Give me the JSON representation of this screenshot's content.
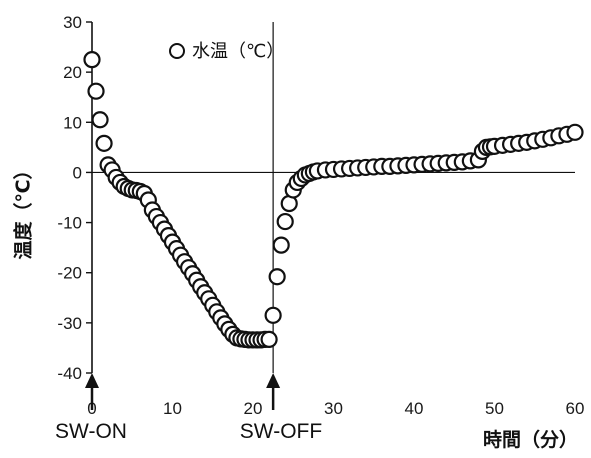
{
  "chart_data": {
    "type": "scatter",
    "title": "",
    "xlabel": "時間（分）",
    "ylabel": "温度（℃）",
    "xlim": [
      0,
      60
    ],
    "ylim": [
      -40,
      30
    ],
    "xticks": [
      0,
      10,
      20,
      30,
      40,
      50,
      60
    ],
    "yticks": [
      -40,
      -30,
      -20,
      -10,
      0,
      10,
      20,
      30
    ],
    "grid": false,
    "reference_lines": {
      "y": 0,
      "x": 22.5
    },
    "legend": {
      "label": "水温（℃）",
      "position": "top-center"
    },
    "annotations": [
      {
        "text": "SW-ON",
        "x": 0
      },
      {
        "text": "SW-OFF",
        "x": 22.5
      }
    ],
    "marker": {
      "shape": "open-circle",
      "color": "#111111"
    },
    "series": [
      {
        "name": "水温（℃）",
        "x": [
          0,
          0.5,
          1.0,
          1.5,
          2.0,
          2.5,
          3.0,
          3.5,
          4.0,
          4.5,
          5.0,
          5.5,
          6.0,
          6.5,
          7.0,
          7.5,
          8.0,
          8.5,
          9.0,
          9.5,
          10.0,
          10.5,
          11.0,
          11.5,
          12.0,
          12.5,
          13.0,
          13.5,
          14.0,
          14.5,
          15.0,
          15.5,
          16.0,
          16.5,
          17.0,
          17.5,
          18.0,
          18.5,
          19.0,
          19.5,
          20.0,
          20.5,
          21.0,
          21.5,
          22.0,
          22.5,
          23.0,
          23.5,
          24.0,
          24.5,
          25.0,
          25.5,
          26.0,
          26.5,
          27.0,
          27.5,
          28.0,
          29.0,
          30.0,
          31.0,
          32.0,
          33.0,
          34.0,
          35.0,
          36.0,
          37.0,
          38.0,
          39.0,
          40.0,
          41.0,
          42.0,
          43.0,
          44.0,
          45.0,
          46.0,
          47.0,
          48.0,
          48.5,
          49.0,
          49.5,
          50.0,
          51.0,
          52.0,
          53.0,
          54.0,
          55.0,
          56.0,
          57.0,
          58.0,
          59.0,
          60.0
        ],
        "y": [
          22.5,
          16.2,
          10.5,
          5.8,
          1.5,
          0.5,
          -1.0,
          -2.0,
          -2.8,
          -3.2,
          -3.5,
          -3.6,
          -3.8,
          -4.2,
          -5.5,
          -7.5,
          -8.8,
          -10.0,
          -11.3,
          -12.6,
          -13.9,
          -15.2,
          -16.5,
          -17.8,
          -19.0,
          -20.2,
          -21.5,
          -22.8,
          -24.0,
          -25.2,
          -26.5,
          -27.8,
          -29.0,
          -30.2,
          -31.3,
          -32.3,
          -33.0,
          -33.2,
          -33.3,
          -33.4,
          -33.4,
          -33.4,
          -33.4,
          -33.3,
          -33.3,
          -28.5,
          -20.8,
          -14.5,
          -9.8,
          -6.2,
          -3.5,
          -2.0,
          -1.2,
          -0.5,
          -0.2,
          0.1,
          0.3,
          0.5,
          0.6,
          0.7,
          0.8,
          0.9,
          1.0,
          1.1,
          1.2,
          1.2,
          1.3,
          1.4,
          1.5,
          1.6,
          1.7,
          1.8,
          1.9,
          2.0,
          2.1,
          2.3,
          2.5,
          4.2,
          5.0,
          5.1,
          5.2,
          5.4,
          5.6,
          5.8,
          6.0,
          6.3,
          6.6,
          6.9,
          7.3,
          7.6,
          8.0
        ]
      }
    ]
  }
}
